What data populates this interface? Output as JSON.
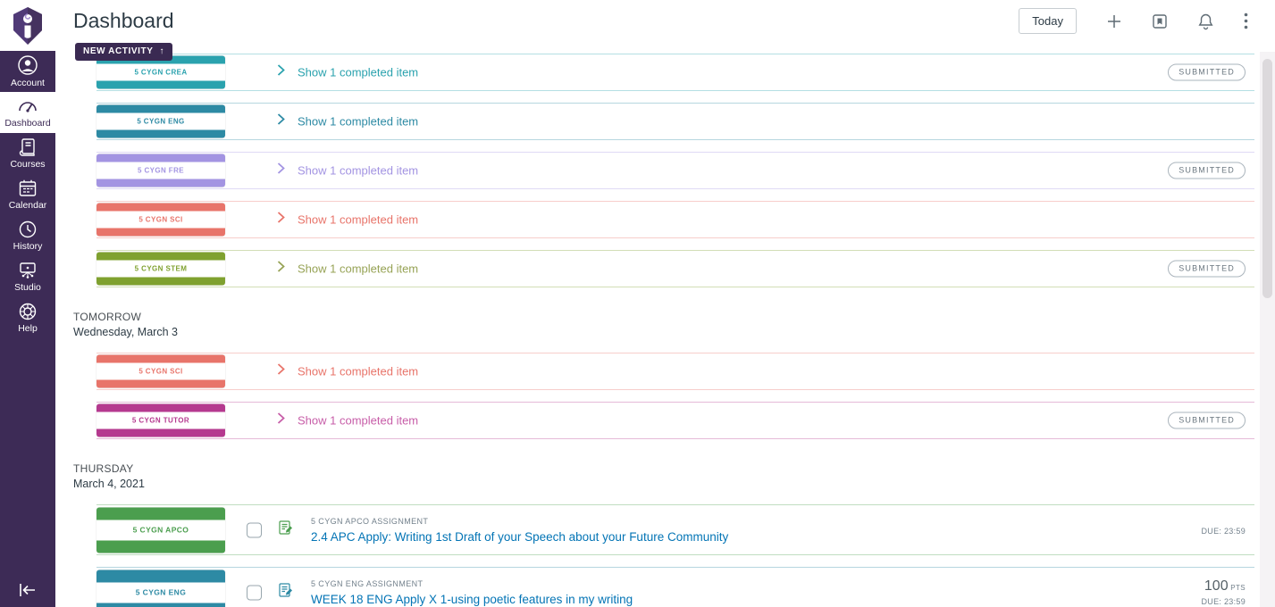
{
  "header": {
    "title": "Dashboard",
    "today_button": "Today"
  },
  "sidebar": {
    "items": [
      {
        "label": "Account",
        "icon": "user-icon",
        "active": false
      },
      {
        "label": "Dashboard",
        "icon": "dashboard-icon",
        "active": true
      },
      {
        "label": "Courses",
        "icon": "courses-icon",
        "active": false
      },
      {
        "label": "Calendar",
        "icon": "calendar-icon",
        "active": false
      },
      {
        "label": "History",
        "icon": "history-icon",
        "active": false
      },
      {
        "label": "Studio",
        "icon": "studio-icon",
        "active": false
      },
      {
        "label": "Help",
        "icon": "help-icon",
        "active": false
      }
    ]
  },
  "new_activity": {
    "label": "NEW ACTIVITY",
    "arrow": "↑"
  },
  "submitted_badge": "SUBMITTED",
  "colors": {
    "sidebar_purple": "#3d2b56",
    "new_activity_bg": "#3a2a52",
    "link_blue": "#0374b5",
    "crea": "#2aa2ae",
    "eng": "#2d8aa4",
    "fre": "#a394e2",
    "sci": "#e8746a",
    "stem": "#7fa12f",
    "stem_text": "#97a356",
    "tutor": "#b5398f",
    "tutor_text": "#c75da8",
    "apco": "#4b9e4e"
  },
  "sections": [
    {
      "heading": "",
      "date": "",
      "items": [
        {
          "type": "toggle",
          "course": "5 CYGN CREA",
          "color": "crea",
          "link": "Show 1 completed item",
          "submitted": true,
          "textured": true
        },
        {
          "type": "toggle",
          "course": "5 CYGN ENG",
          "color": "eng",
          "link": "Show 1 completed item",
          "submitted": false,
          "textured": true
        },
        {
          "type": "toggle",
          "course": "5 CYGN FRE",
          "color": "fre",
          "link": "Show 1 completed item",
          "submitted": true,
          "textured": true
        },
        {
          "type": "toggle",
          "course": "5 CYGN SCI",
          "color": "sci",
          "link": "Show 1 completed item",
          "submitted": false,
          "textured": true
        },
        {
          "type": "toggle",
          "course": "5 CYGN STEM",
          "color": "stem",
          "link": "Show 1 completed item",
          "submitted": true,
          "textured": false
        }
      ]
    },
    {
      "heading": "TOMORROW",
      "date": "Wednesday, March 3",
      "items": [
        {
          "type": "toggle",
          "course": "5 CYGN SCI",
          "color": "sci",
          "link": "Show 1 completed item",
          "submitted": false,
          "textured": true
        },
        {
          "type": "toggle",
          "course": "5 CYGN TUTOR",
          "color": "tutor",
          "link": "Show 1 completed item",
          "submitted": true,
          "textured": true
        }
      ]
    },
    {
      "heading": "THURSDAY",
      "date": "March 4, 2021",
      "items": [
        {
          "type": "assignment",
          "course": "5 CYGN APCO",
          "color": "apco",
          "textured": false,
          "context_label": "5 CYGN APCO ASSIGNMENT",
          "title": "2.4 APC Apply: Writing 1st Draft of your Speech about your Future Community",
          "due": "DUE: 23:59",
          "points": null
        },
        {
          "type": "assignment",
          "course": "5 CYGN ENG",
          "color": "eng",
          "textured": true,
          "context_label": "5 CYGN ENG ASSIGNMENT",
          "title": "WEEK 18 ENG Apply X 1-using poetic features in my writing",
          "due": "DUE: 23:59",
          "points": {
            "value": "100",
            "unit": "PTS"
          }
        }
      ]
    }
  ]
}
